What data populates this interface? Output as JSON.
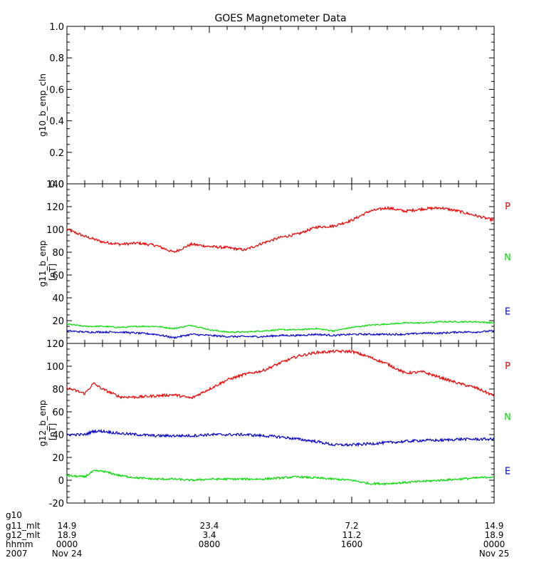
{
  "title": "GOES Magnetometer Data",
  "colors": {
    "P": "#ee0000",
    "N": "#00dd00",
    "E": "#0000cc",
    "axis": "#000000"
  },
  "chart_data": [
    {
      "type": "line",
      "id": "g10",
      "ylabel": "g10_b_enp_cln",
      "unit": "",
      "ylim": [
        0,
        1.0
      ],
      "yticks": [
        0.0,
        0.2,
        0.4,
        0.6,
        0.8,
        1.0
      ],
      "ytick_labels": [
        "0.0",
        "0.2",
        "0.4",
        "0.6",
        "0.8",
        "1.0"
      ],
      "series": []
    },
    {
      "type": "line",
      "id": "g11",
      "ylabel": "g11_b_enp",
      "unit": "[nT]",
      "ylim": [
        0,
        140
      ],
      "yticks": [
        0,
        20,
        40,
        60,
        80,
        100,
        120,
        140
      ],
      "ytick_labels": [
        "0",
        "20",
        "40",
        "60",
        "80",
        "100",
        "120",
        "140"
      ],
      "legend": [
        "P",
        "N",
        "E"
      ],
      "series": [
        {
          "name": "P",
          "noise": 1.2,
          "x": [
            0,
            1,
            2,
            3,
            4,
            5,
            6,
            7,
            8,
            9,
            10,
            11,
            12,
            13,
            14,
            15,
            16,
            17,
            18,
            19,
            20,
            21,
            22,
            23,
            24
          ],
          "values": [
            100,
            94,
            89,
            87,
            88,
            86,
            80,
            87,
            85,
            84,
            82,
            88,
            93,
            96,
            102,
            103,
            108,
            116,
            119,
            116,
            118,
            119,
            116,
            112,
            108
          ]
        },
        {
          "name": "N",
          "noise": 0.6,
          "x": [
            0,
            1,
            2,
            3,
            4,
            5,
            6,
            7,
            8,
            9,
            10,
            11,
            12,
            13,
            14,
            15,
            16,
            17,
            18,
            19,
            20,
            21,
            22,
            23,
            24
          ],
          "values": [
            17,
            15,
            15,
            14,
            15,
            15,
            13,
            16,
            12,
            10,
            10,
            11,
            12,
            12,
            13,
            11,
            14,
            16,
            17,
            18,
            18,
            19,
            19,
            19,
            18
          ]
        },
        {
          "name": "E",
          "noise": 0.8,
          "x": [
            0,
            1,
            2,
            3,
            4,
            5,
            6,
            7,
            8,
            9,
            10,
            11,
            12,
            13,
            14,
            15,
            16,
            17,
            18,
            19,
            20,
            21,
            22,
            23,
            24
          ],
          "values": [
            11,
            10,
            10,
            10,
            9,
            8,
            5,
            8,
            7,
            6,
            6,
            6,
            7,
            7,
            8,
            7,
            8,
            8,
            8,
            8,
            9,
            9,
            10,
            10,
            11
          ]
        }
      ]
    },
    {
      "type": "line",
      "id": "g12",
      "ylabel": "g12_b_enp",
      "unit": "[nT]",
      "ylim": [
        -20,
        120
      ],
      "yticks": [
        -20,
        0,
        20,
        40,
        60,
        80,
        100,
        120
      ],
      "ytick_labels": [
        "-20",
        "0",
        "20",
        "40",
        "60",
        "80",
        "100",
        "120"
      ],
      "legend": [
        "P",
        "N",
        "E"
      ],
      "series": [
        {
          "name": "P",
          "noise": 1.2,
          "x": [
            0,
            1,
            1.5,
            2,
            3,
            4,
            5,
            6,
            7,
            8,
            9,
            10,
            11,
            12,
            13,
            14,
            15,
            16,
            17,
            18,
            19,
            20,
            21,
            22,
            23,
            24
          ],
          "values": [
            81,
            76,
            85,
            80,
            73,
            73,
            74,
            75,
            72,
            80,
            88,
            93,
            96,
            103,
            109,
            112,
            113,
            113,
            108,
            102,
            94,
            95,
            90,
            85,
            81,
            74
          ]
        },
        {
          "name": "N",
          "noise": 0.9,
          "x": [
            0,
            1,
            1.5,
            2,
            3,
            4,
            5,
            6,
            7,
            8,
            9,
            10,
            11,
            12,
            13,
            14,
            15,
            16,
            17,
            18,
            19,
            20,
            21,
            22,
            23,
            24
          ],
          "values": [
            4,
            3,
            8,
            8,
            4,
            2,
            1,
            1,
            0,
            1,
            1,
            1,
            1,
            2,
            3,
            2,
            1,
            0,
            -3,
            -3,
            -2,
            -1,
            0,
            1,
            2,
            3
          ]
        },
        {
          "name": "E",
          "noise": 1.2,
          "x": [
            0,
            1,
            1.5,
            2,
            3,
            4,
            5,
            6,
            7,
            8,
            9,
            10,
            11,
            12,
            13,
            14,
            15,
            16,
            17,
            18,
            19,
            20,
            21,
            22,
            23,
            24
          ],
          "values": [
            40,
            40,
            43,
            43,
            41,
            40,
            39,
            39,
            39,
            40,
            40,
            40,
            39,
            38,
            36,
            34,
            31,
            31,
            32,
            33,
            34,
            35,
            35,
            36,
            36,
            36
          ]
        }
      ]
    }
  ],
  "x_axis": {
    "range_hours": [
      0,
      24
    ],
    "tick_hours": [
      0,
      8,
      16,
      24
    ],
    "minor_every_hours": 1,
    "rows": [
      {
        "label": "g10",
        "values": [
          "",
          "",
          "",
          ""
        ]
      },
      {
        "label": "g11_mlt",
        "values": [
          "14.9",
          "23.4",
          "7.2",
          "14.9"
        ]
      },
      {
        "label": "g12_mlt",
        "values": [
          "18.9",
          "3.4",
          "11.2",
          "18.9"
        ]
      },
      {
        "label": "hhmm",
        "values": [
          "0000",
          "0800",
          "1600",
          "0000"
        ]
      },
      {
        "label": "2007",
        "values": [
          "Nov 24",
          "",
          "",
          "Nov 25"
        ]
      }
    ]
  }
}
